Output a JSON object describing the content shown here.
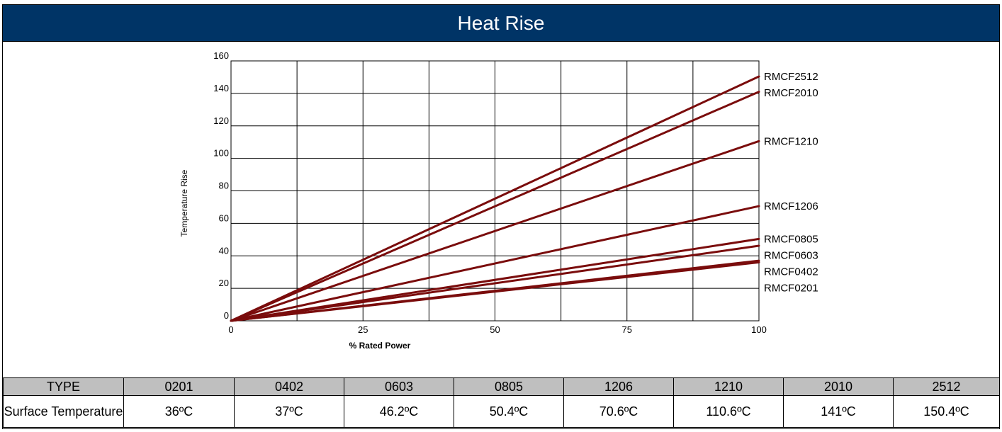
{
  "title": "Heat Rise",
  "colors": {
    "header_bg": "#003466",
    "line": "#7a0c0c",
    "table_header_bg": "#bfbfbf"
  },
  "chart_data": {
    "type": "line",
    "title": "Heat Rise",
    "xlabel": "% Rated Power",
    "ylabel": "Temperature Rise",
    "xlim": [
      0,
      100
    ],
    "ylim": [
      0,
      160
    ],
    "xticks": [
      0,
      25,
      50,
      75,
      100
    ],
    "yticks": [
      0,
      20,
      40,
      60,
      80,
      100,
      120,
      140,
      160
    ],
    "grid": true,
    "x": [
      0,
      100
    ],
    "series": [
      {
        "name": "RMCF2512",
        "values": [
          0,
          150.4
        ]
      },
      {
        "name": "RMCF2010",
        "values": [
          0,
          141
        ]
      },
      {
        "name": "RMCF1210",
        "values": [
          0,
          110.6
        ]
      },
      {
        "name": "RMCF1206",
        "values": [
          0,
          70.6
        ]
      },
      {
        "name": "RMCF0805",
        "values": [
          0,
          50.4
        ]
      },
      {
        "name": "RMCF0603",
        "values": [
          0,
          46.2
        ]
      },
      {
        "name": "RMCF0402",
        "values": [
          0,
          37
        ]
      },
      {
        "name": "RMCF0201",
        "values": [
          0,
          36
        ]
      }
    ]
  },
  "table": {
    "header_label": "TYPE",
    "row_label": "Surface Temperature",
    "types": [
      "0201",
      "0402",
      "0603",
      "0805",
      "1206",
      "1210",
      "2010",
      "2512"
    ],
    "temperatures": [
      "36ºC",
      "37ºC",
      "46.2ºC",
      "50.4ºC",
      "70.6ºC",
      "110.6ºC",
      "141ºC",
      "150.4ºC"
    ]
  }
}
